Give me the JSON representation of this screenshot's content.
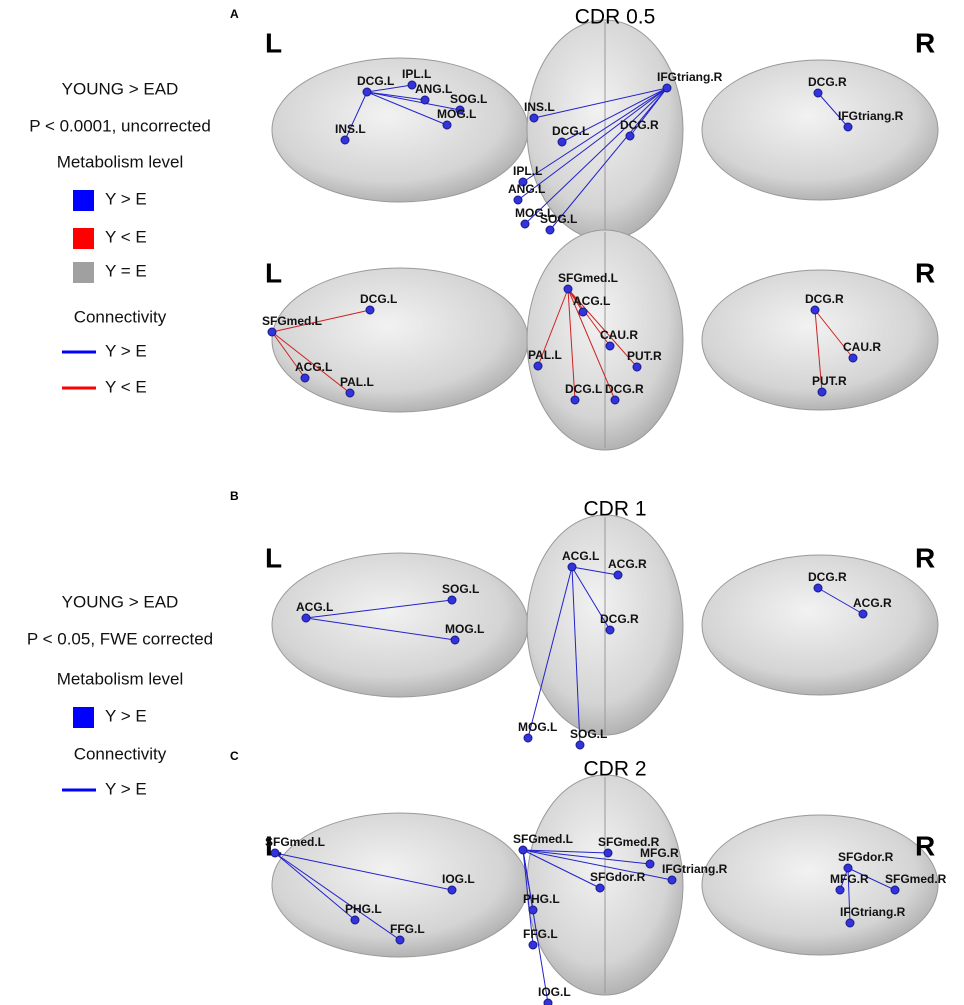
{
  "legends": [
    {
      "group": "YOUNG > EAD",
      "threshold": "P < 0.0001, uncorrected",
      "metabolism_title": "Metabolism level",
      "metabolism": [
        "Y > E",
        "Y < E",
        "Y = E"
      ],
      "connectivity_title": "Connectivity",
      "connectivity": [
        "Y > E",
        "Y < E"
      ]
    },
    {
      "group": "YOUNG > EAD",
      "threshold": "P < 0.05, FWE corrected",
      "metabolism_title": "Metabolism level",
      "metabolism": [
        "Y > E"
      ],
      "connectivity_title": "Connectivity",
      "connectivity": [
        "Y > E"
      ]
    }
  ],
  "panels": [
    {
      "letter": "A",
      "title": "CDR 0.5"
    },
    {
      "letter": "B",
      "title": "CDR 1"
    },
    {
      "letter": "C",
      "title": "CDR 2"
    }
  ],
  "side_labels": [
    "L",
    "R"
  ],
  "rows": [
    {
      "left": [
        "DCG.L",
        "IPL.L",
        "ANG.L",
        "SOG.L",
        "MOG.L",
        "INS.L"
      ],
      "top": [
        "IFGtriang.R",
        "INS.L",
        "DCG.L",
        "DCG.R",
        "IPL.L",
        "ANG.L",
        "MOG.L",
        "SOG.L"
      ],
      "right": [
        "DCG.R",
        "IFGtriang.R"
      ]
    },
    {
      "left": [
        "SFGmed.L",
        "DCG.L",
        "ACG.L",
        "PAL.L"
      ],
      "top": [
        "SFGmed.L",
        "ACG.L",
        "CAU.R",
        "PAL.L",
        "PUT.R",
        "DCG.L",
        "DCG.R"
      ],
      "right": [
        "DCG.R",
        "CAU.R",
        "PUT.R"
      ]
    },
    {
      "left": [
        "ACG.L",
        "SOG.L",
        "MOG.L"
      ],
      "top": [
        "ACG.L",
        "ACG.R",
        "DCG.R",
        "MOG.L",
        "SOG.L"
      ],
      "right": [
        "DCG.R",
        "ACG.R"
      ]
    },
    {
      "left": [
        "SFGmed.L",
        "IOG.L",
        "PHG.L",
        "FFG.L"
      ],
      "top": [
        "SFGmed.L",
        "SFGmed.R",
        "MFG.R",
        "SFGdor.R",
        "IFGtriang.R",
        "PHG.L",
        "FFG.L",
        "IOG.L"
      ],
      "right": [
        "SFGdor.R",
        "MFG.R",
        "SFGmed.R",
        "IFGtriang.R"
      ]
    }
  ]
}
